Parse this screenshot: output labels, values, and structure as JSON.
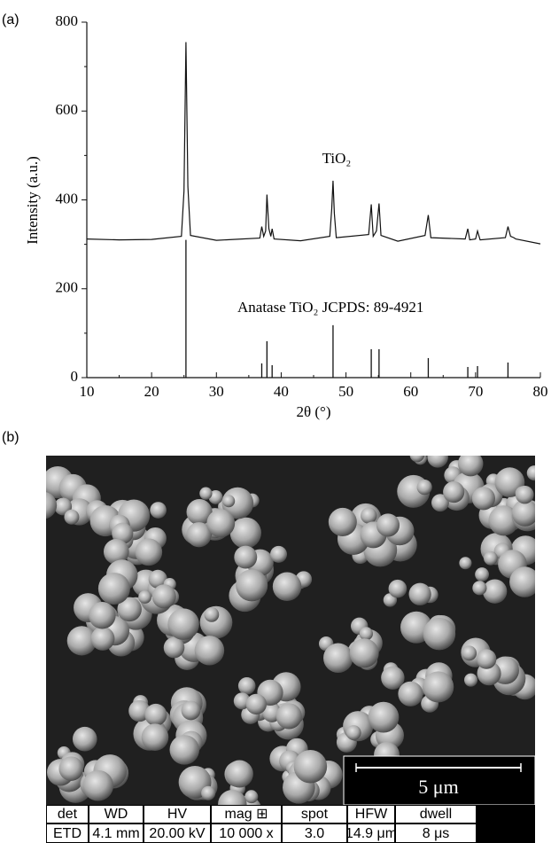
{
  "chart_data": {
    "type": "line",
    "panel_label": "(a)",
    "xlabel": "2θ (°)",
    "ylabel": "Intensity (a.u.)",
    "xlim": [
      10,
      80
    ],
    "ylim": [
      0,
      800
    ],
    "xticks": [
      10,
      20,
      30,
      40,
      50,
      60,
      70,
      80
    ],
    "yticks": [
      0,
      200,
      400,
      600,
      800
    ],
    "x_minor_ticks": [
      15,
      25,
      35,
      45,
      55,
      65,
      75
    ],
    "y_minor_ticks": [
      100,
      300,
      500,
      700
    ],
    "series": [
      {
        "name": "TiO₂",
        "style": "line",
        "color": "#111111",
        "x": [
          10,
          15,
          20,
          24.6,
          25.0,
          25.3,
          25.6,
          26,
          30,
          36.7,
          37.0,
          37.3,
          37.6,
          37.8,
          38.1,
          38.4,
          38.6,
          38.9,
          43,
          47.5,
          47.8,
          48.0,
          48.2,
          48.5,
          53.5,
          53.9,
          54.2,
          54.7,
          55.1,
          55.4,
          58,
          62.2,
          62.7,
          63.1,
          68.4,
          68.8,
          69.1,
          70.0,
          70.3,
          70.7,
          74.6,
          75.0,
          75.4,
          75.9,
          76.2,
          80
        ],
        "values": [
          312,
          310,
          311,
          318,
          420,
          755,
          430,
          320,
          309,
          314,
          340,
          318,
          330,
          412,
          335,
          318,
          335,
          312,
          308,
          318,
          380,
          443,
          370,
          315,
          322,
          390,
          318,
          330,
          392,
          320,
          307,
          320,
          366,
          315,
          312,
          335,
          310,
          312,
          330,
          310,
          315,
          340,
          318,
          315,
          312,
          301
        ]
      },
      {
        "name": "Anatase TiO₂ JCPDS: 89-4921",
        "style": "stick",
        "color": "#111111",
        "x": [
          25.3,
          37.0,
          37.8,
          38.6,
          48.0,
          53.9,
          55.1,
          62.7,
          68.8,
          70.3,
          75.0
        ],
        "values": [
          310,
          32,
          82,
          28,
          118,
          64,
          64,
          44,
          24,
          26,
          34
        ]
      }
    ]
  },
  "sem_image": {
    "panel_label": "(b)",
    "scale_bar": "5 μm",
    "info_table": {
      "header": [
        "det",
        "WD",
        "HV",
        "mag ⊞",
        "spot",
        "HFW",
        "dwell"
      ],
      "row": [
        "ETD",
        "4.1 mm",
        "20.00 kV",
        "10 000 x",
        "3.0",
        "14.9 μm",
        "8 μs"
      ]
    }
  }
}
